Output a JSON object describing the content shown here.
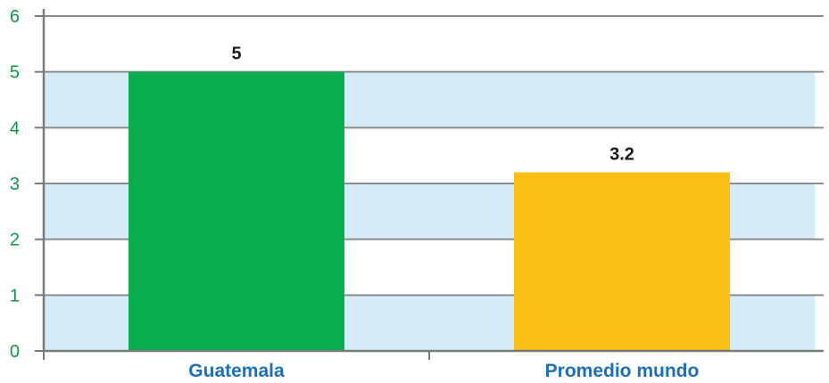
{
  "chart_data": {
    "type": "bar",
    "categories": [
      "Guatemala",
      "Promedio mundo"
    ],
    "values": [
      5,
      3.2
    ],
    "data_labels": [
      "5",
      "3.2"
    ],
    "bar_colors": [
      "#0aad4d",
      "#f9bf15"
    ],
    "ylim": [
      0,
      6
    ],
    "yticks": [
      "0",
      "1",
      "2",
      "3",
      "4",
      "5",
      "6"
    ],
    "title": "",
    "xlabel": "",
    "ylabel": "",
    "grid": true,
    "band_color": "#d5ecf8",
    "gridline_color": "#8c8c8c",
    "axis_color": "#7a7a7a",
    "ytick_color": "#0a9a46",
    "category_label_color": "#1d6fb8",
    "data_label_color": "#1a1a1a"
  }
}
